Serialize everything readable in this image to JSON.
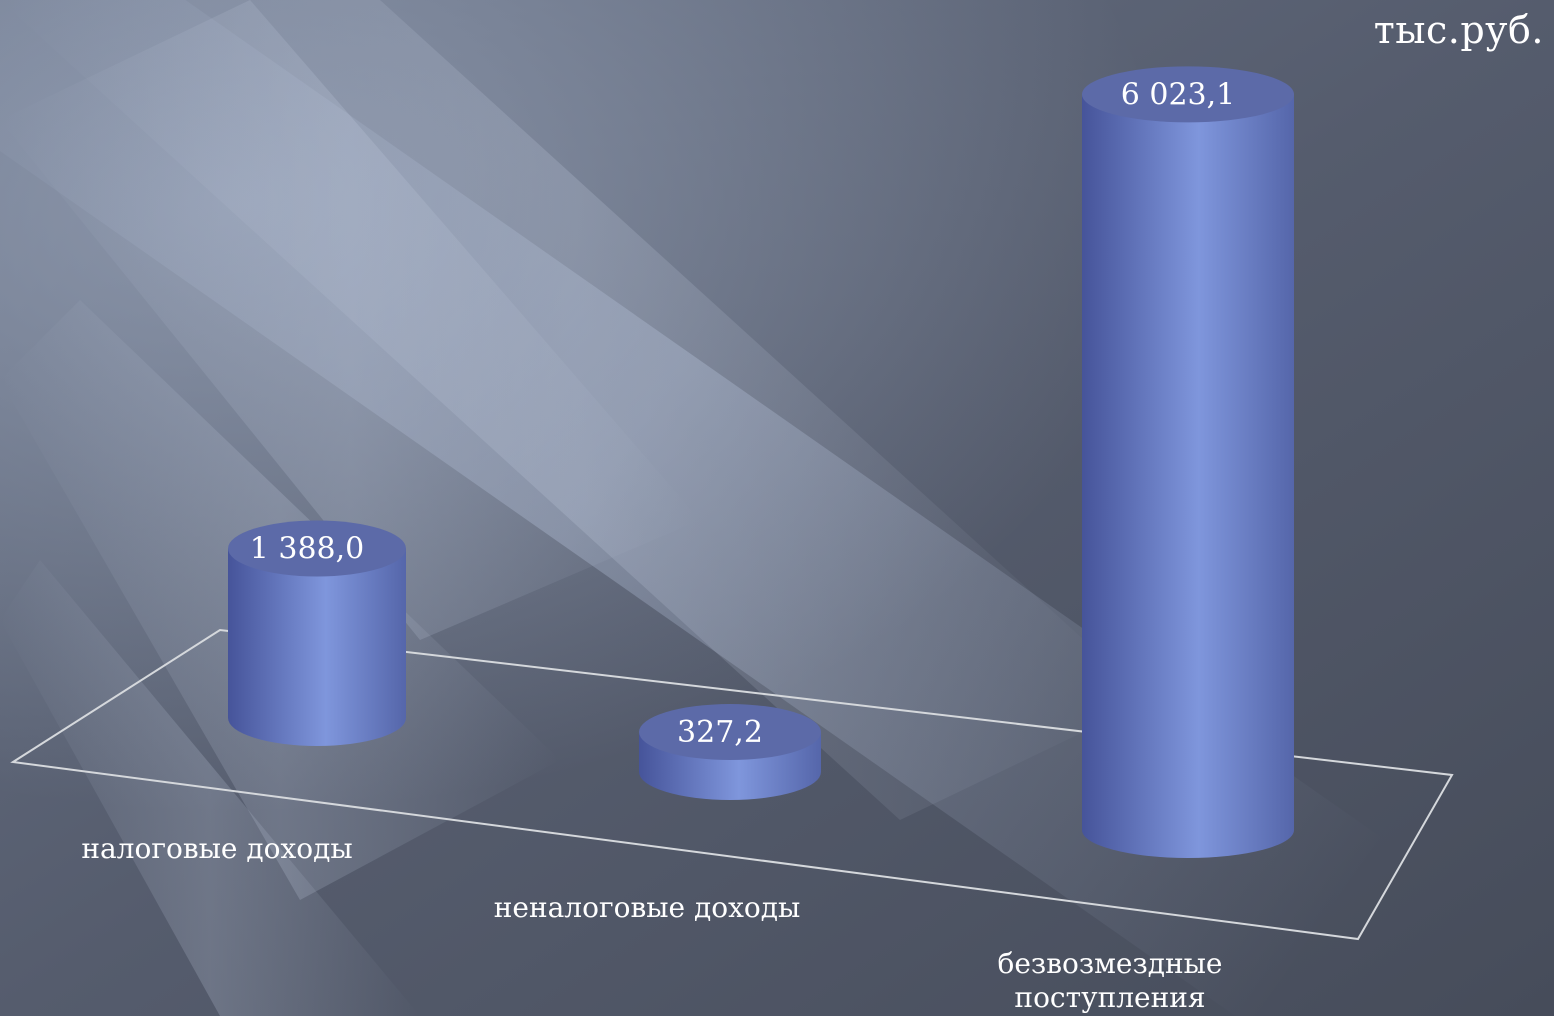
{
  "unit_label": "тыс.руб.",
  "chart_data": {
    "type": "bar",
    "style": "3d-cylinder",
    "categories": [
      [
        "налоговые доходы"
      ],
      [
        "неналоговые доходы"
      ],
      [
        "безвозмездные",
        "поступления"
      ]
    ],
    "values": [
      1388.0,
      327.2,
      6023.1
    ],
    "value_labels": [
      "1 388,0",
      "327,2",
      "6 023,1"
    ],
    "ylim": [
      0,
      6100
    ],
    "grid": false,
    "legend": "none",
    "colors": {
      "bar_body_dark": "#4b5a9c",
      "bar_body_light": "#7f96dc",
      "bar_top": "#5c6aa8",
      "floor_line": "#d5d8dc",
      "text": "#ffffff"
    }
  }
}
